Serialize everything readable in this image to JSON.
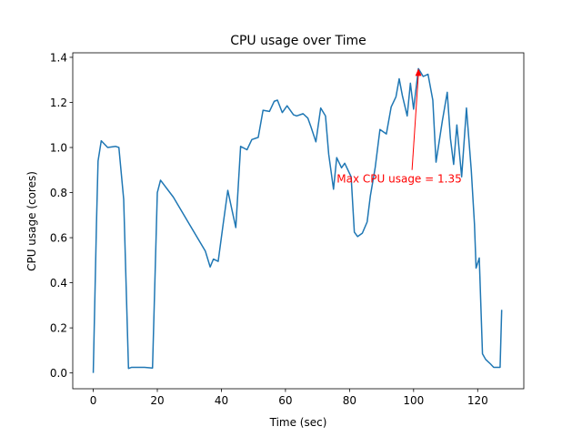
{
  "chart_data": {
    "type": "line",
    "title": "CPU usage over Time",
    "xlabel": "Time (sec)",
    "ylabel": "CPU usage (cores)",
    "xlim": [
      -6.4,
      134.4
    ],
    "ylim": [
      -0.07,
      1.42
    ],
    "xticks": [
      0,
      20,
      40,
      60,
      80,
      100,
      120
    ],
    "yticks": [
      0.0,
      0.2,
      0.4,
      0.6,
      0.8,
      1.0,
      1.2,
      1.4
    ],
    "xtick_labels": [
      "0",
      "20",
      "40",
      "60",
      "80",
      "100",
      "120"
    ],
    "ytick_labels": [
      "0.0",
      "0.2",
      "0.4",
      "0.6",
      "0.8",
      "1.0",
      "1.2",
      "1.4"
    ],
    "grid": false,
    "series": [
      {
        "color": "#1f77b4",
        "x": [
          0,
          1,
          1.5,
          2.5,
          4.5,
          7,
          8,
          9.5,
          11,
          12,
          13.5,
          16,
          18.5,
          20,
          21,
          25,
          30,
          35,
          36.5,
          37.5,
          39,
          40.5,
          42,
          43.5,
          44.5,
          46,
          48,
          49.5,
          51.5,
          53,
          55,
          56.5,
          57.5,
          59,
          60.5,
          62.5,
          63.5,
          65.5,
          67,
          68,
          69.5,
          71,
          72.5,
          73.5,
          75,
          76,
          77.5,
          78.5,
          80.5,
          81.5,
          82.5,
          84,
          85.5,
          86.5,
          88,
          89.5,
          91.5,
          93,
          94.5,
          95.5,
          96.5,
          98,
          99,
          100,
          101.5,
          103,
          104.5,
          106,
          107,
          109,
          110.5,
          111.5,
          112.5,
          113.5,
          115,
          116.5,
          118,
          119,
          119.5,
          120.5,
          121.5,
          122.5,
          124,
          125,
          126,
          127,
          127.5
        ],
        "y": [
          0.0,
          0.66,
          0.94,
          1.03,
          1.0,
          1.005,
          1.0,
          0.77,
          0.02,
          0.025,
          0.025,
          0.025,
          0.022,
          0.8,
          0.855,
          0.78,
          0.66,
          0.54,
          0.47,
          0.505,
          0.495,
          0.655,
          0.81,
          0.71,
          0.645,
          1.005,
          0.99,
          1.035,
          1.045,
          1.165,
          1.16,
          1.205,
          1.21,
          1.155,
          1.185,
          1.145,
          1.14,
          1.15,
          1.13,
          1.09,
          1.025,
          1.175,
          1.14,
          0.97,
          0.815,
          0.955,
          0.91,
          0.93,
          0.87,
          0.625,
          0.605,
          0.62,
          0.67,
          0.785,
          0.91,
          1.08,
          1.06,
          1.18,
          1.225,
          1.305,
          1.23,
          1.14,
          1.285,
          1.17,
          1.35,
          1.315,
          1.325,
          1.21,
          0.935,
          1.12,
          1.245,
          1.04,
          0.925,
          1.1,
          0.87,
          1.175,
          0.9,
          0.66,
          0.465,
          0.51,
          0.085,
          0.06,
          0.04,
          0.025,
          0.025,
          0.025,
          0.28
        ]
      }
    ],
    "annotation": {
      "text": "Max CPU usage = 1.35",
      "color": "#ff0000",
      "point": [
        101.5,
        1.35
      ],
      "text_anchor": [
        76,
        0.86
      ]
    }
  }
}
